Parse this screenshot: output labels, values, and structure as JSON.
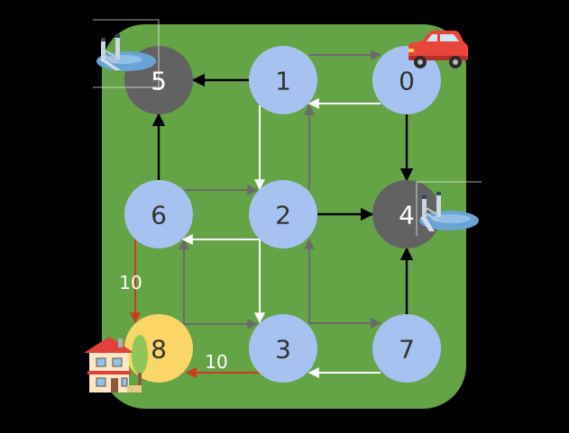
{
  "board": {
    "background_color": "#000000",
    "field_color": "#64a346"
  },
  "colors": {
    "node_default": "#a6c2f0",
    "node_blocked": "#626262",
    "node_destination": "#fbd566",
    "edge_default": "#6b6b6b",
    "edge_highlight": "#ffffff",
    "edge_black": "#000000",
    "edge_weighted": "#cf3b1a",
    "weight_text": "#ffffff"
  },
  "nodes": [
    {
      "id": "0",
      "label": "0",
      "state": "default",
      "icon": "car-icon"
    },
    {
      "id": "1",
      "label": "1",
      "state": "default"
    },
    {
      "id": "2",
      "label": "2",
      "state": "default"
    },
    {
      "id": "3",
      "label": "3",
      "state": "default"
    },
    {
      "id": "4",
      "label": "4",
      "state": "blocked",
      "icon": "broken-bridge-icon"
    },
    {
      "id": "5",
      "label": "5",
      "state": "blocked",
      "icon": "broken-bridge-icon"
    },
    {
      "id": "6",
      "label": "6",
      "state": "default"
    },
    {
      "id": "7",
      "label": "7",
      "state": "default"
    },
    {
      "id": "8",
      "label": "8",
      "state": "destination",
      "icon": "house-icon"
    }
  ],
  "edges": [
    {
      "from": "1",
      "to": "0",
      "style": "gray"
    },
    {
      "from": "0",
      "to": "1",
      "style": "white"
    },
    {
      "from": "1",
      "to": "5",
      "style": "black"
    },
    {
      "from": "0",
      "to": "4",
      "style": "black"
    },
    {
      "from": "1",
      "to": "2",
      "style": "white"
    },
    {
      "from": "2",
      "to": "1",
      "style": "gray"
    },
    {
      "from": "6",
      "to": "5",
      "style": "black"
    },
    {
      "from": "6",
      "to": "2",
      "style": "gray"
    },
    {
      "from": "2",
      "to": "6",
      "style": "white"
    },
    {
      "from": "2",
      "to": "4",
      "style": "black"
    },
    {
      "from": "2",
      "to": "3",
      "style": "white"
    },
    {
      "from": "3",
      "to": "2",
      "style": "gray"
    },
    {
      "from": "6",
      "to": "8",
      "style": "red",
      "weight": "10"
    },
    {
      "from": "8",
      "to": "6",
      "style": "gray"
    },
    {
      "from": "8",
      "to": "3",
      "style": "gray"
    },
    {
      "from": "3",
      "to": "8",
      "style": "red",
      "weight": "10"
    },
    {
      "from": "3",
      "to": "7",
      "style": "gray"
    },
    {
      "from": "7",
      "to": "3",
      "style": "white"
    },
    {
      "from": "7",
      "to": "4",
      "style": "black"
    }
  ]
}
